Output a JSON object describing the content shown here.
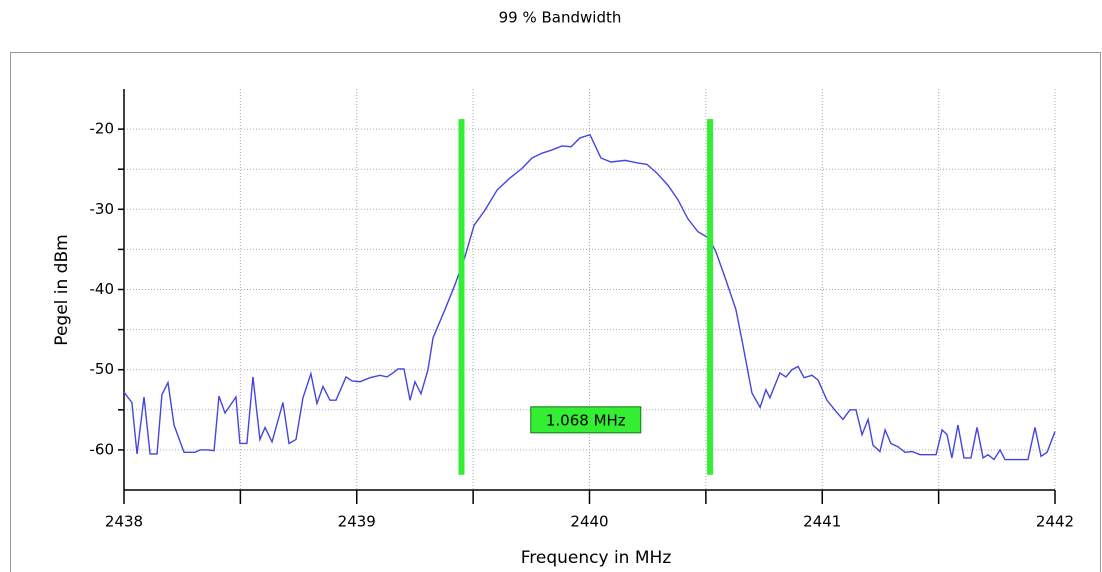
{
  "chart_data": {
    "type": "line",
    "title": "99 % Bandwidth",
    "x_label": "Frequency in MHz",
    "y_label": "Pegel in dBm",
    "series": [
      {
        "color": "#4545e0",
        "x": [
          2438.0,
          2438.034,
          2438.056,
          2438.086,
          2438.112,
          2438.142,
          2438.163,
          2438.189,
          2438.215,
          2438.258,
          2438.305,
          2438.327,
          2438.361,
          2438.387,
          2438.408,
          2438.434,
          2438.481,
          2438.498,
          2438.528,
          2438.554,
          2438.584,
          2438.606,
          2438.636,
          2438.683,
          2438.709,
          2438.739,
          2438.769,
          2438.803,
          2438.829,
          2438.855,
          2438.885,
          2438.911,
          2438.954,
          2438.98,
          2439.014,
          2439.057,
          2439.1,
          2439.13,
          2439.156,
          2439.177,
          2439.203,
          2439.229,
          2439.25,
          2439.276,
          2439.306,
          2439.328,
          2439.379,
          2439.422,
          2439.465,
          2439.504,
          2439.551,
          2439.603,
          2439.658,
          2439.71,
          2439.753,
          2439.796,
          2439.839,
          2439.882,
          2439.921,
          2439.959,
          2440.002,
          2440.049,
          2440.092,
          2440.153,
          2440.204,
          2440.247,
          2440.29,
          2440.337,
          2440.38,
          2440.423,
          2440.466,
          2440.513,
          2440.543,
          2440.586,
          2440.629,
          2440.659,
          2440.698,
          2440.733,
          2440.758,
          2440.775,
          2440.818,
          2440.844,
          2440.87,
          2440.896,
          2440.922,
          2440.956,
          2440.982,
          2441.02,
          2441.059,
          2441.089,
          2441.119,
          2441.145,
          2441.171,
          2441.197,
          2441.218,
          2441.248,
          2441.27,
          2441.295,
          2441.325,
          2441.356,
          2441.386,
          2441.42,
          2441.489,
          2441.515,
          2441.536,
          2441.557,
          2441.583,
          2441.609,
          2441.639,
          2441.665,
          2441.691,
          2441.712,
          2441.738,
          2441.764,
          2441.785,
          2441.884,
          2441.914,
          2441.94,
          2441.966,
          2442.0
        ],
        "values": [
          -52.8,
          -54.1,
          -60.5,
          -53.4,
          -60.5,
          -60.5,
          -53.1,
          -51.6,
          -56.9,
          -60.3,
          -60.3,
          -60,
          -60,
          -60.1,
          -53.3,
          -55.4,
          -53.4,
          -59.2,
          -59.2,
          -50.9,
          -58.7,
          -57.2,
          -59,
          -54.1,
          -59.2,
          -58.7,
          -53.5,
          -50.5,
          -54.2,
          -52.1,
          -53.8,
          -53.8,
          -50.9,
          -51.4,
          -51.5,
          -51,
          -50.7,
          -50.9,
          -50.4,
          -49.9,
          -49.9,
          -53.8,
          -51.5,
          -53,
          -50,
          -46,
          -42.5,
          -39.4,
          -35.9,
          -32,
          -30.1,
          -27.6,
          -26.1,
          -24.9,
          -23.6,
          -23,
          -22.6,
          -22.1,
          -22.2,
          -21.1,
          -20.7,
          -23.6,
          -24.1,
          -23.9,
          -24.2,
          -24.4,
          -25.5,
          -27,
          -28.8,
          -31.2,
          -32.8,
          -33.6,
          -35.3,
          -38.8,
          -42.5,
          -46.9,
          -52.9,
          -54.7,
          -52.5,
          -53.5,
          -50.4,
          -50.9,
          -50,
          -49.6,
          -51,
          -50.7,
          -51.3,
          -53.8,
          -55.2,
          -56.2,
          -55,
          -55,
          -58.1,
          -56.2,
          -59.4,
          -60.2,
          -57.5,
          -59.2,
          -59.6,
          -60.3,
          -60.2,
          -60.6,
          -60.6,
          -57.5,
          -58.1,
          -61,
          -56.9,
          -61,
          -61,
          -57.2,
          -61,
          -60.6,
          -61.2,
          -60,
          -61.2,
          -61.2,
          -57.2,
          -60.8,
          -60.3,
          -57.7
        ]
      }
    ],
    "markers": [
      2439.45,
      2440.518
    ],
    "marker_color": "#33ee33",
    "annotation": "1.068 MHz",
    "xlim": [
      2438,
      2442
    ],
    "xticks": [
      2438,
      2439,
      2440,
      2441,
      2442
    ],
    "xminor_ticks": [
      2438.5,
      2439.5,
      2440.5,
      2441.5
    ],
    "ylim": [
      -65,
      -15
    ],
    "yticks": [
      -20,
      -30,
      -40,
      -50,
      -60
    ],
    "yminor_ticks": [
      -25,
      -35,
      -45,
      -55
    ],
    "grid": true
  }
}
